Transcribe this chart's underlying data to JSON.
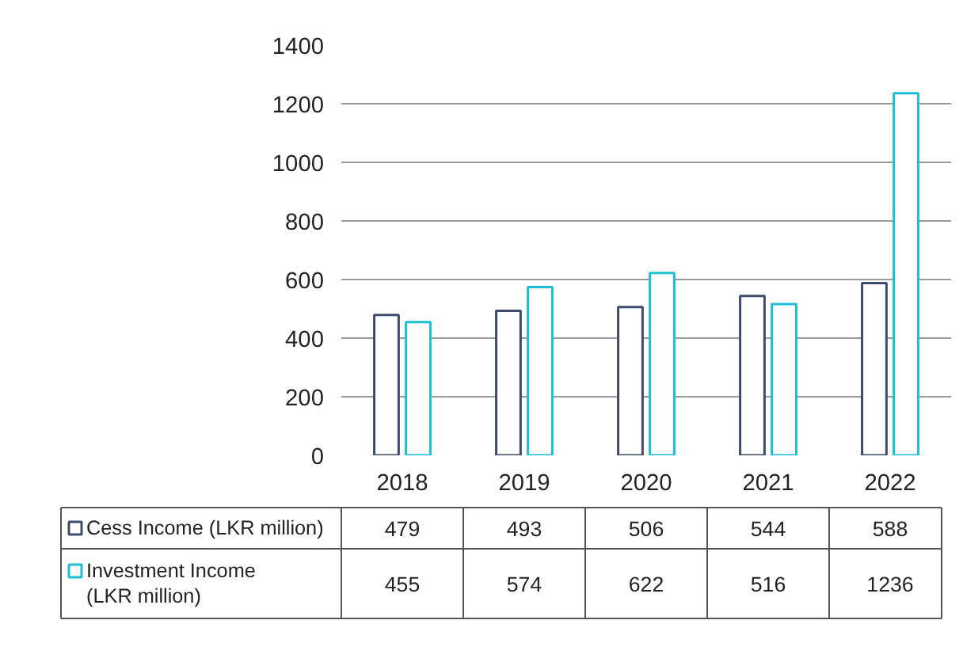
{
  "chart_data": {
    "type": "bar",
    "categories": [
      "2018",
      "2019",
      "2020",
      "2021",
      "2022"
    ],
    "series": [
      {
        "name": "Cess Income (LKR million)",
        "color": "#3d4c6e",
        "values": [
          479,
          493,
          506,
          544,
          588
        ]
      },
      {
        "name": "Investment Income (LKR million)",
        "color": "#1cbfd6",
        "values": [
          455,
          574,
          622,
          516,
          1236
        ]
      }
    ],
    "ylim": [
      0,
      1400
    ],
    "yticks": [
      0,
      200,
      400,
      600,
      800,
      1000,
      1200,
      1400
    ],
    "grid": "y",
    "data_labels": true,
    "legend": "bottom"
  }
}
